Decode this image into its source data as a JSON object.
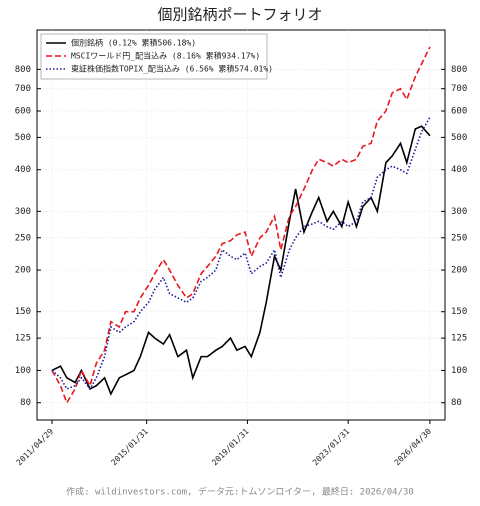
{
  "chart_data": {
    "type": "line",
    "title": "個別銘柄ポートフォリオ",
    "footer": "作成: wildinvestors.com, データ元:トムソンロイター, 最終日: 2026/04/30",
    "log_y": true,
    "grid": true,
    "mirror_y_labels": true,
    "legend_position": "upper-left",
    "x": [
      "2011/04/29",
      "2011/08/31",
      "2011/11/30",
      "2012/03/30",
      "2012/06/29",
      "2012/10/31",
      "2013/01/31",
      "2013/05/31",
      "2013/08/30",
      "2013/12/30",
      "2014/03/31",
      "2014/07/31",
      "2014/10/31",
      "2015/02/27",
      "2015/05/29",
      "2015/09/30",
      "2015/12/30",
      "2016/04/28",
      "2016/08/31",
      "2016/11/30",
      "2017/03/31",
      "2017/06/30",
      "2017/10/31",
      "2018/01/31",
      "2018/05/31",
      "2018/08/31",
      "2018/12/28",
      "2019/03/29",
      "2019/07/31",
      "2019/10/31",
      "2020/02/28",
      "2020/05/29",
      "2020/09/30",
      "2020/12/30",
      "2021/04/30",
      "2021/08/31",
      "2021/11/30",
      "2022/03/31",
      "2022/06/30",
      "2022/10/31",
      "2023/01/31",
      "2023/05/31",
      "2023/08/31",
      "2023/12/29",
      "2024/03/29",
      "2024/07/31",
      "2024/10/31",
      "2025/02/28",
      "2025/05/30",
      "2025/09/30",
      "2025/12/30",
      "2026/04/30"
    ],
    "xlim": [
      "2010/09/24",
      "2026/12/05"
    ],
    "xticks": [
      "2011/04/29",
      "2015/01/31",
      "2019/01/31",
      "2023/01/31",
      "2026/04/30"
    ],
    "ylim": [
      71,
      1050
    ],
    "yticks": [
      80,
      100,
      125,
      150,
      200,
      250,
      300,
      400,
      500,
      600,
      700,
      800
    ],
    "series": [
      {
        "name": "個別銘柄 (0.12% 累積506.18%)",
        "color": "#000000",
        "dash": "solid",
        "values": [
          100,
          103,
          95,
          92,
          100,
          88,
          90,
          95,
          85,
          95,
          97,
          100,
          110,
          130,
          125,
          120,
          128,
          110,
          115,
          95,
          110,
          110,
          115,
          118,
          125,
          115,
          118,
          110,
          130,
          160,
          220,
          200,
          280,
          350,
          260,
          300,
          330,
          280,
          300,
          270,
          320,
          270,
          310,
          330,
          300,
          420,
          440,
          480,
          420,
          530,
          540,
          506
        ]
      },
      {
        "name": "MSCIワールド円_配当込み (8.16% 累積934.17%)",
        "color": "#e8191c",
        "dash": "dashed",
        "values": [
          100,
          90,
          80,
          88,
          100,
          90,
          105,
          115,
          140,
          135,
          150,
          150,
          165,
          180,
          195,
          215,
          200,
          180,
          165,
          170,
          195,
          205,
          220,
          240,
          245,
          255,
          260,
          220,
          250,
          260,
          290,
          230,
          290,
          310,
          350,
          400,
          430,
          420,
          410,
          430,
          420,
          430,
          470,
          480,
          560,
          600,
          680,
          700,
          650,
          760,
          830,
          934
        ]
      },
      {
        "name": "東証株価指数TOPIX_配当込み (6.56% 累積574.01%)",
        "color": "#1a1a9a",
        "dash": "dotted",
        "values": [
          100,
          95,
          88,
          90,
          95,
          88,
          95,
          110,
          135,
          130,
          135,
          140,
          150,
          160,
          175,
          190,
          170,
          165,
          160,
          165,
          185,
          190,
          200,
          230,
          220,
          215,
          225,
          195,
          205,
          210,
          230,
          190,
          230,
          250,
          270,
          275,
          280,
          270,
          265,
          280,
          270,
          280,
          320,
          330,
          380,
          400,
          410,
          400,
          390,
          460,
          520,
          574
        ]
      }
    ]
  }
}
